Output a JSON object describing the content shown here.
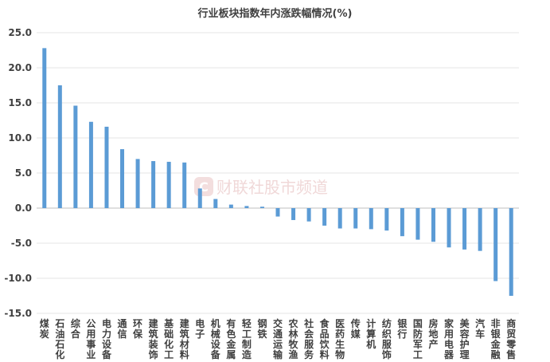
{
  "chart_data": {
    "type": "bar",
    "title": "行业板块指数年内涨跌幅情况(%)",
    "xlabel": "",
    "ylabel": "",
    "ylim": [
      -15,
      25
    ],
    "yticks": [
      "25.0",
      "20.0",
      "15.0",
      "10.0",
      "5.0",
      "0.0",
      "-5.0",
      "-10.0",
      "-15.0"
    ],
    "grid": true,
    "legend": "none",
    "bar_color": "#5b9bd5",
    "categories": [
      "煤炭",
      "石油石化",
      "综合",
      "公用事业",
      "电力设备",
      "通信",
      "环保",
      "建筑装饰",
      "基础化工",
      "建筑材料",
      "电子",
      "机械设备",
      "有色金属",
      "轻工制造",
      "钢铁",
      "交通运输",
      "农林牧渔",
      "社会服务",
      "食品饮料",
      "医药生物",
      "传媒",
      "计算机",
      "纺织服饰",
      "银行",
      "国防军工",
      "房地产",
      "家用电器",
      "美容护理",
      "汽车",
      "非银金融",
      "商贸零售"
    ],
    "values": [
      22.8,
      17.5,
      14.6,
      12.3,
      11.6,
      8.4,
      7.0,
      6.7,
      6.6,
      6.5,
      2.8,
      1.3,
      0.5,
      0.3,
      0.2,
      -1.2,
      -1.7,
      -1.9,
      -2.5,
      -2.9,
      -2.9,
      -3.0,
      -3.2,
      -4.0,
      -4.5,
      -4.8,
      -5.6,
      -5.9,
      -6.1,
      -10.4,
      -12.5
    ]
  },
  "watermark": {
    "text": "财联社股市频道",
    "icon": "cls-logo-icon",
    "color": "#f0d8d8"
  }
}
